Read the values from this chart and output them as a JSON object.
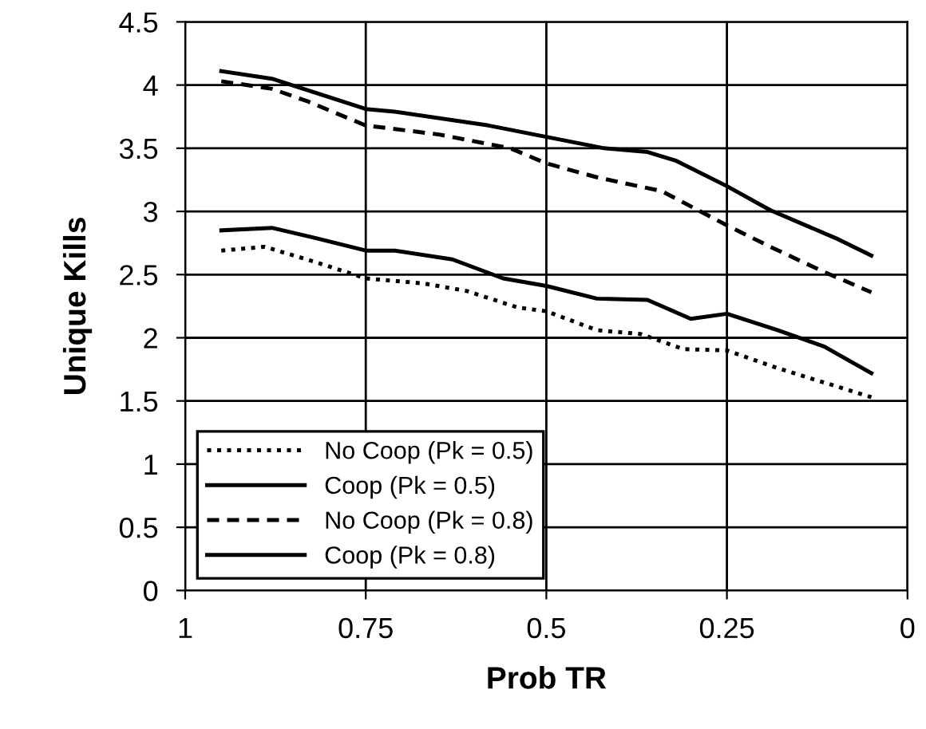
{
  "chart_data": {
    "type": "line",
    "xlabel": "Prob TR",
    "ylabel": "Unique Kills",
    "xlim": [
      1,
      0
    ],
    "xticks": [
      1,
      0.75,
      0.5,
      0.25,
      0
    ],
    "ylim": [
      0,
      4.5
    ],
    "yticks": [
      0,
      0.5,
      1,
      1.5,
      2,
      2.5,
      3,
      3.5,
      4,
      4.5
    ],
    "grid": true,
    "legend": "bottom left",
    "marker": "none",
    "series": [
      {
        "name": "No Coop (Pk = 0.5)",
        "color": "#000000",
        "line_style": "dotted",
        "x": [
          0.95,
          0.89,
          0.82,
          0.75,
          0.67,
          0.61,
          0.54,
          0.5,
          0.43,
          0.37,
          0.31,
          0.25,
          0.18,
          0.05
        ],
        "values": [
          2.69,
          2.72,
          2.6,
          2.47,
          2.43,
          2.37,
          2.24,
          2.21,
          2.06,
          2.03,
          1.91,
          1.9,
          1.76,
          1.53
        ]
      },
      {
        "name": "Coop (Pk = 0.5)",
        "color": "#000000",
        "line_style": "solid",
        "x": [
          0.95,
          0.88,
          0.82,
          0.75,
          0.71,
          0.63,
          0.56,
          0.5,
          0.43,
          0.36,
          0.3,
          0.25,
          0.18,
          0.115,
          0.05
        ],
        "values": [
          2.85,
          2.87,
          2.79,
          2.69,
          2.69,
          2.62,
          2.47,
          2.41,
          2.31,
          2.3,
          2.15,
          2.19,
          2.06,
          1.93,
          1.72
        ]
      },
      {
        "name": "No Coop (Pk = 0.8)",
        "color": "#000000",
        "line_style": "dashed",
        "x": [
          0.95,
          0.88,
          0.83,
          0.75,
          0.65,
          0.55,
          0.5,
          0.43,
          0.34,
          0.25,
          0.19,
          0.115,
          0.05
        ],
        "values": [
          4.03,
          3.97,
          3.87,
          3.68,
          3.61,
          3.5,
          3.38,
          3.27,
          3.16,
          2.89,
          2.72,
          2.52,
          2.36
        ]
      },
      {
        "name": "Coop (Pk = 0.8)",
        "color": "#000000",
        "line_style": "solid",
        "x": [
          0.95,
          0.88,
          0.75,
          0.71,
          0.58,
          0.5,
          0.42,
          0.36,
          0.32,
          0.25,
          0.19,
          0.1,
          0.05
        ],
        "values": [
          4.11,
          4.05,
          3.81,
          3.79,
          3.68,
          3.59,
          3.5,
          3.47,
          3.4,
          3.2,
          3.01,
          2.79,
          2.65
        ]
      }
    ]
  }
}
